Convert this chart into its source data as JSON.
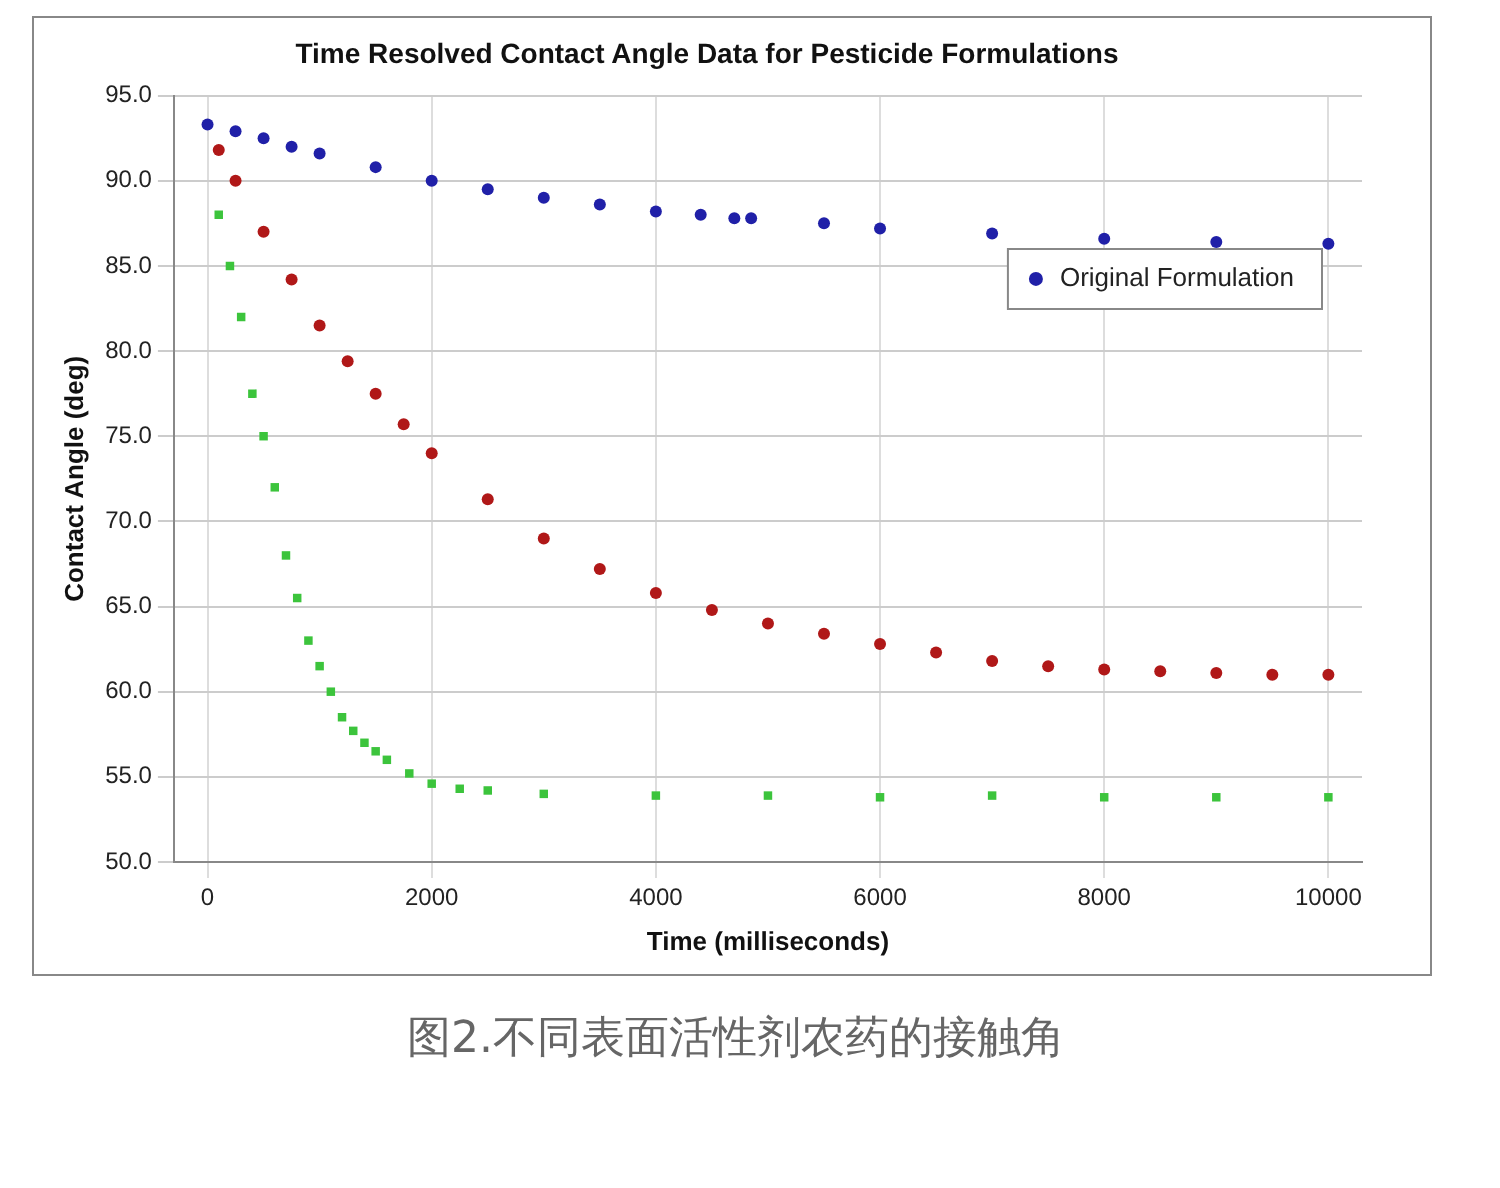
{
  "chart_data": {
    "type": "scatter",
    "title": "Time Resolved Contact Angle Data for Pesticide Formulations",
    "xlabel": "Time (milliseconds)",
    "ylabel": "Contact Angle (deg)",
    "annotations": [
      "图2.不同表面活性剂农药的接触角"
    ],
    "xlim": [
      -300,
      10300
    ],
    "xticks": [
      0,
      2000,
      4000,
      6000,
      8000,
      10000
    ],
    "ylim": [
      50,
      95
    ],
    "yticks": [
      {
        "value": 50,
        "label": "50.0"
      },
      {
        "value": 55,
        "label": "55.0"
      },
      {
        "value": 60,
        "label": "60.0"
      },
      {
        "value": 65,
        "label": "65.0"
      },
      {
        "value": 70,
        "label": "70.0"
      },
      {
        "value": 75,
        "label": "75.0"
      },
      {
        "value": 80,
        "label": "80.0"
      },
      {
        "value": 85,
        "label": "85.0"
      },
      {
        "value": 90,
        "label": "90.0"
      },
      {
        "value": 95,
        "label": "95.0"
      }
    ],
    "grid": true,
    "legend": "top right",
    "series": [
      {
        "name": "Original Formulation",
        "color": "#2020a8",
        "marker": "circle",
        "x": [
          0,
          250,
          500,
          750,
          1000,
          1500,
          2000,
          2500,
          3000,
          3500,
          4000,
          4400,
          4700,
          4750,
          4850,
          5500,
          6000,
          7000,
          8000,
          9000,
          10000
        ],
        "values": [
          93.3,
          92.9,
          92.5,
          92.0,
          91.6,
          90.8,
          90.0,
          89.5,
          89.0,
          88.6,
          88.2,
          88.0,
          87.8,
          null,
          87.8,
          87.5,
          87.2,
          86.9,
          86.6,
          86.4,
          86.3
        ]
      },
      {
        "color": "#b01818",
        "marker": "circle",
        "x": [
          100,
          250,
          500,
          750,
          1000,
          1250,
          1500,
          1750,
          2000,
          2500,
          3000,
          3500,
          4000,
          4500,
          5000,
          5500,
          6000,
          6500,
          7000,
          7500,
          8000,
          8500,
          9000,
          9500,
          10000
        ],
        "values": [
          91.8,
          90.0,
          87.0,
          84.2,
          81.5,
          79.4,
          77.5,
          75.7,
          74.0,
          71.3,
          69.0,
          67.2,
          65.8,
          64.8,
          64.0,
          63.4,
          62.8,
          62.3,
          61.8,
          61.5,
          61.3,
          61.2,
          61.1,
          61.0,
          61.0
        ]
      },
      {
        "color": "#3cc43c",
        "marker": "square",
        "x": [
          100,
          200,
          300,
          400,
          500,
          600,
          700,
          800,
          900,
          1000,
          1100,
          1200,
          1300,
          1400,
          1500,
          1600,
          1800,
          2000,
          2250,
          2500,
          3000,
          4000,
          5000,
          6000,
          7000,
          8000,
          9000,
          10000
        ],
        "values": [
          88.0,
          85.0,
          82.0,
          77.5,
          75.0,
          72.0,
          68.0,
          65.5,
          63.0,
          61.5,
          60.0,
          58.5,
          57.7,
          57.0,
          56.5,
          56.0,
          55.2,
          54.6,
          54.3,
          54.2,
          54.0,
          53.9,
          53.9,
          53.8,
          53.9,
          53.8,
          53.8,
          53.8
        ]
      }
    ]
  }
}
